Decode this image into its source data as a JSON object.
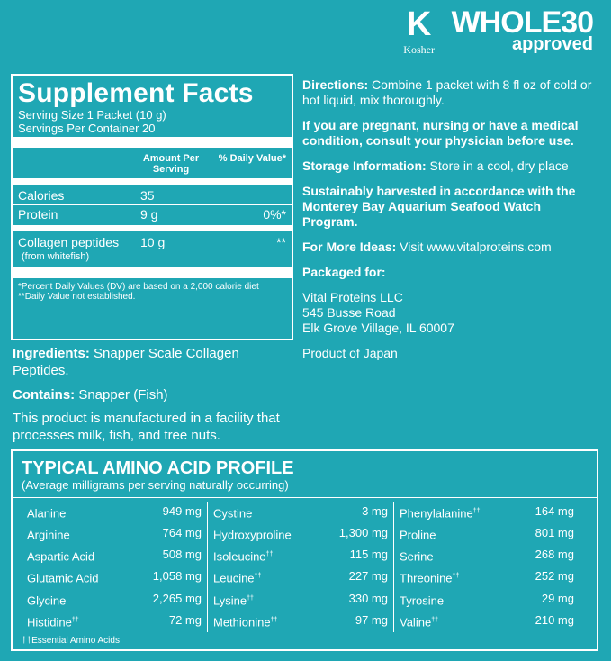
{
  "logos": {
    "kosher_mark": "K",
    "kosher_label": "Kosher",
    "whole30": "WHOLE30",
    "approved": "approved"
  },
  "supplement_facts": {
    "title": "Supplement Facts",
    "serving_size": "Serving Size 1 Packet (10 g)",
    "servings_per_container": "Servings Per Container 20",
    "col_amount": "Amount Per Serving",
    "col_dv": "% Daily Value*",
    "rows": [
      {
        "name": "Calories",
        "amount": "35",
        "dv": ""
      },
      {
        "name": "Protein",
        "amount": "9 g",
        "dv": "0%*"
      },
      {
        "name": "Collagen peptides",
        "amount": "10 g",
        "dv": "**"
      }
    ],
    "collagen_sub": "(from whitefish)",
    "footnote1": "*Percent Daily Values (DV) are based on a 2,000 calorie diet",
    "footnote2": "**Daily Value not established."
  },
  "left_text": {
    "ingredients_label": "Ingredients:",
    "ingredients": " Snapper Scale Collagen Peptides.",
    "contains_label": "Contains:",
    "contains": " Snapper (Fish)",
    "facility": "This product is manufactured in a facility that processes milk, fish, and tree nuts."
  },
  "right_text": {
    "directions_label": "Directions:",
    "directions": " Combine 1 packet with 8 fl oz of cold or hot liquid, mix thoroughly.",
    "pregnant": "If you are pregnant, nursing or have a medical condition, consult your physician before use.",
    "storage_label": "Storage Information:",
    "storage": " Store in a cool, dry place",
    "sustain": "Sustainably harvested in accordance with the Monterey Bay Aquarium Seafood Watch Program.",
    "ideas_label": "For More Ideas:",
    "ideas": " Visit www.vitalproteins.com",
    "packaged_label": "Packaged for:",
    "company": "Vital Proteins LLC",
    "address1": "545 Busse Road",
    "address2": "Elk Grove Village, IL 60007",
    "origin": "Product of Japan"
  },
  "amino": {
    "title": "TYPICAL AMINO ACID PROFILE",
    "subtitle": "(Average milligrams per serving naturally occurring)",
    "columns": [
      [
        {
          "name": "Alanine",
          "ess": "",
          "value": "949 mg"
        },
        {
          "name": "Arginine",
          "ess": "",
          "value": "764 mg"
        },
        {
          "name": "Aspartic Acid",
          "ess": "",
          "value": "508 mg"
        },
        {
          "name": "Glutamic Acid",
          "ess": "",
          "value": "1,058 mg"
        },
        {
          "name": "Glycine",
          "ess": "",
          "value": "2,265 mg"
        },
        {
          "name": "Histidine",
          "ess": "††",
          "value": "72 mg"
        }
      ],
      [
        {
          "name": "Cystine",
          "ess": "",
          "value": "3 mg"
        },
        {
          "name": "Hydroxyproline",
          "ess": "",
          "value": "1,300 mg"
        },
        {
          "name": "Isoleucine",
          "ess": "††",
          "value": "115 mg"
        },
        {
          "name": "Leucine",
          "ess": "††",
          "value": "227 mg"
        },
        {
          "name": "Lysine",
          "ess": "††",
          "value": "330 mg"
        },
        {
          "name": "Methionine",
          "ess": "††",
          "value": "97 mg"
        }
      ],
      [
        {
          "name": "Phenylalanine",
          "ess": "††",
          "value": "164 mg"
        },
        {
          "name": "Proline",
          "ess": "",
          "value": "801 mg"
        },
        {
          "name": "Serine",
          "ess": "",
          "value": "268 mg"
        },
        {
          "name": "Threonine",
          "ess": "††",
          "value": "252 mg"
        },
        {
          "name": "Tyrosine",
          "ess": "",
          "value": "29 mg"
        },
        {
          "name": "Valine",
          "ess": "††",
          "value": "210 mg"
        }
      ]
    ],
    "footnote": "††Essential Amino Acids"
  }
}
